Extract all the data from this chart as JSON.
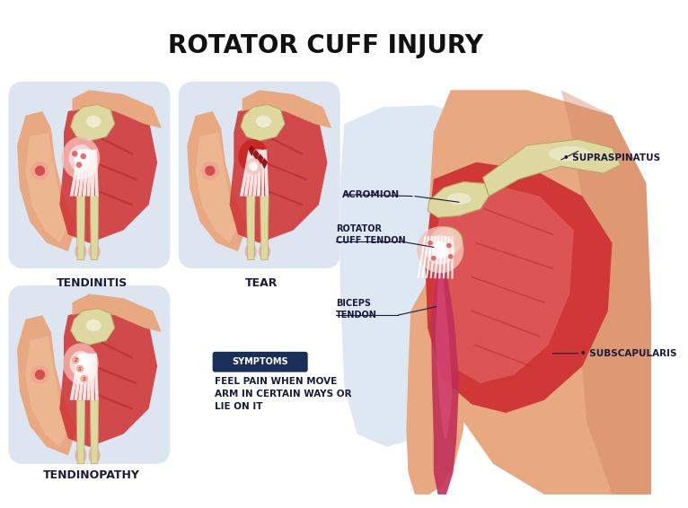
{
  "title": "ROTATOR CUFF INJURY",
  "title_fontsize": 20,
  "title_color": "#111111",
  "background_color": "#ffffff",
  "panel_bg_color": "#dde6f0",
  "skin_color": "#e8a882",
  "skin_light": "#f0c4a0",
  "skin_dark": "#d08060",
  "muscle_red": "#d03838",
  "muscle_light": "#e87070",
  "muscle_pink": "#f0a090",
  "bone_color": "#ddd8a0",
  "bone_dark": "#b8a860",
  "inflammation_pink": "#f8c0b8",
  "inflammation_white": "#fff0ee",
  "label_color": "#1a1a3a",
  "symptoms_bg": "#1a2e5a",
  "symptoms_text_color": "#ffffff",
  "symptoms_title": "SYMPTOMS",
  "symptoms_body": "FEEL PAIN WHEN MOVE\nARM IN CERTAIN WAYS OR\nLIE ON IT",
  "symptoms_body_color": "#1a1a3a",
  "labels": {
    "tendinitis": "TENDINITIS",
    "tear": "TEAR",
    "tendinopathy": "TENDINOPATHY",
    "acromion": "ACROMION",
    "rotator_cuff_tendon": "ROTATOR\nCUFF TENDON",
    "biceps_tendon": "BICEPS\nTENDON",
    "supraspinatus": "SUPRASPINATUS",
    "subscapularis": "SUBSCAPULARIS"
  }
}
